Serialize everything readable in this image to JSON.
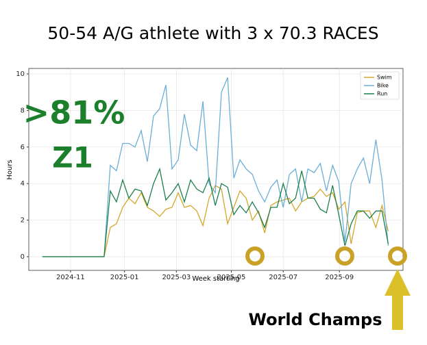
{
  "title": "50-54 A/G athlete with 3 x 70.3 RACES",
  "annotations": {
    "percent": ">81%",
    "zone": "Z1",
    "event": "World Champs"
  },
  "chart_data": {
    "type": "line",
    "x_label": "Week starting",
    "y_label": "Hours",
    "categories": [
      null,
      null,
      null,
      null,
      null,
      null,
      null,
      null,
      null,
      null,
      null,
      null,
      null,
      null,
      null,
      null,
      null,
      null,
      null,
      null,
      null,
      null,
      null,
      null,
      null,
      null,
      null,
      null,
      null,
      null,
      null,
      null,
      null,
      null,
      null,
      null,
      null,
      null,
      null,
      null,
      null,
      null,
      null,
      null,
      null,
      null,
      null,
      null,
      null,
      null,
      null,
      null,
      null,
      null,
      null,
      null,
      null
    ],
    "series": [
      {
        "name": "Swim",
        "color": "#d4a72c",
        "values": [
          0,
          0,
          0,
          0,
          0,
          0,
          0,
          0,
          0,
          0,
          0,
          1.6,
          1.8,
          2.7,
          3.2,
          2.9,
          3.5,
          2.7,
          2.5,
          2.2,
          2.6,
          2.7,
          3.5,
          2.7,
          2.8,
          2.5,
          1.7,
          3.2,
          3.9,
          3.7,
          1.8,
          2.7,
          3.6,
          3.2,
          2.0,
          2.5,
          1.3,
          2.8,
          3.0,
          3.1,
          3.2,
          2.5,
          3.0,
          3.2,
          3.3,
          3.7,
          3.3,
          3.5,
          2.6,
          3.0,
          0.7,
          2.4,
          2.5,
          2.5,
          1.6,
          2.8,
          1.4
        ]
      },
      {
        "name": "Bike",
        "color": "#6baed6",
        "values": [
          0,
          0,
          0,
          0,
          0,
          0,
          0,
          0,
          0,
          0,
          0,
          5.0,
          4.7,
          6.2,
          6.2,
          6.0,
          6.9,
          5.2,
          7.7,
          8.1,
          9.4,
          4.8,
          5.3,
          7.8,
          6.1,
          5.8,
          8.5,
          4.0,
          3.5,
          9.0,
          9.8,
          4.3,
          5.3,
          4.8,
          4.5,
          3.6,
          3.0,
          3.8,
          4.2,
          2.7,
          4.5,
          4.8,
          3.0,
          4.8,
          4.6,
          5.1,
          3.6,
          5.0,
          4.1,
          0.8,
          4.0,
          4.8,
          5.4,
          4.0,
          6.4,
          4.2,
          0.6
        ]
      },
      {
        "name": "Run",
        "color": "#1b7f4c",
        "values": [
          0,
          0,
          0,
          0,
          0,
          0,
          0,
          0,
          0,
          0,
          0,
          3.6,
          3.0,
          4.2,
          3.2,
          3.7,
          3.6,
          2.8,
          4.0,
          4.8,
          3.1,
          3.5,
          4.0,
          3.0,
          4.2,
          3.7,
          3.5,
          4.3,
          2.8,
          4.0,
          3.8,
          2.3,
          2.8,
          2.4,
          3.0,
          2.4,
          1.6,
          2.7,
          2.7,
          4.0,
          2.9,
          3.2,
          4.7,
          3.2,
          3.2,
          2.6,
          2.4,
          3.9,
          2.3,
          0.6,
          1.8,
          2.5,
          2.5,
          2.1,
          2.5,
          2.5,
          0.7
        ]
      }
    ],
    "xlim": [
      -2.2,
      58.4
    ],
    "xticks": [
      {
        "value": 4.56,
        "label": "2024-11"
      },
      {
        "value": 13.3,
        "label": "2025-01"
      },
      {
        "value": 21.7,
        "label": "2025-03"
      },
      {
        "value": 30.6,
        "label": "2025-05"
      },
      {
        "value": 39,
        "label": "2025-07"
      },
      {
        "value": 48.1,
        "label": "2025-09"
      }
    ],
    "ylim": [
      -0.75,
      10.3
    ],
    "yticks": [
      0,
      2,
      4,
      6,
      8,
      10
    ],
    "grid": true,
    "legend": "upper right"
  }
}
